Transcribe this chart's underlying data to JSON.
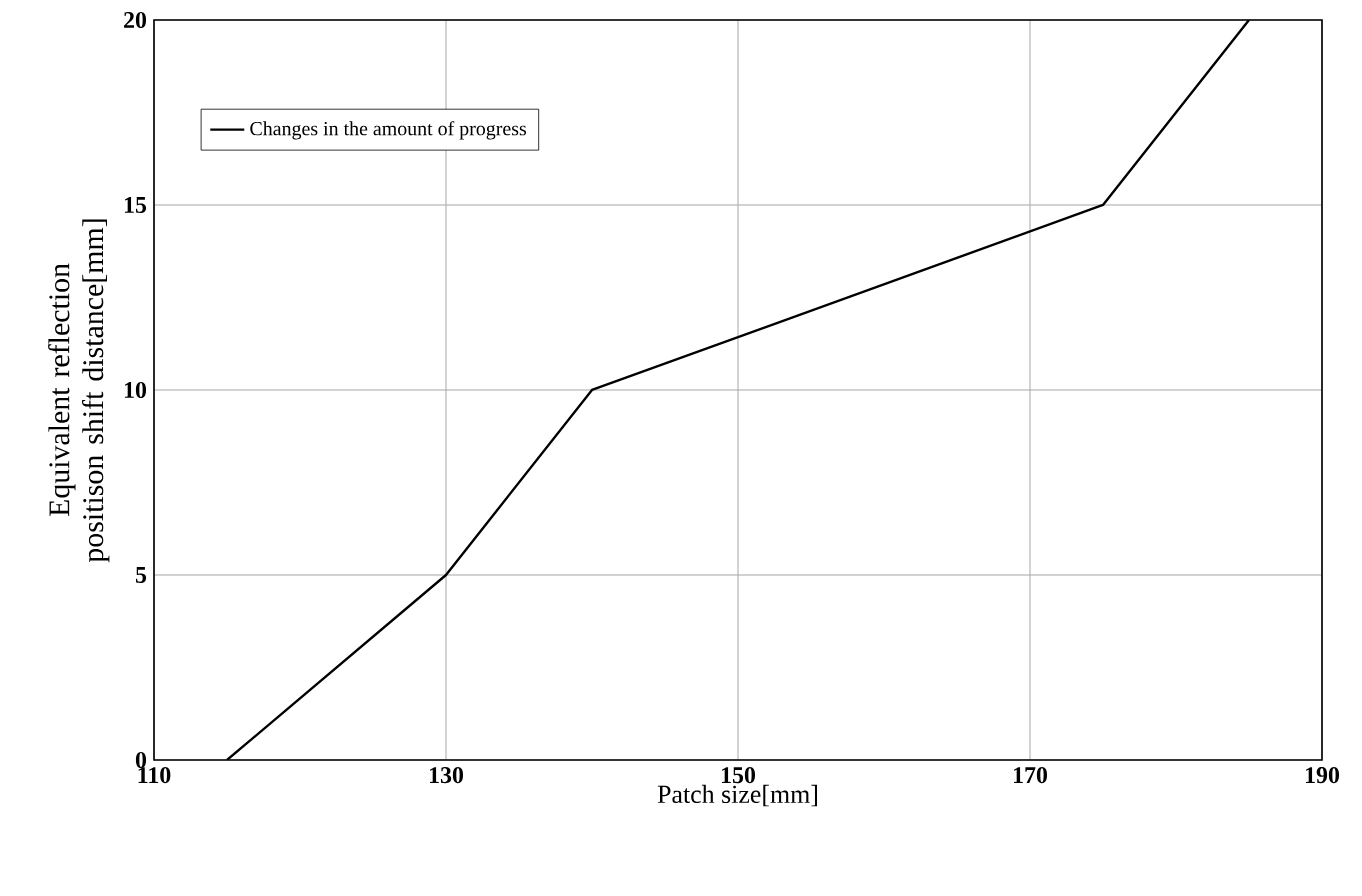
{
  "chart_data": {
    "type": "line",
    "xlabel": "Patch size[mm]",
    "ylabel": "Equivalent reflection positison shift distance[mm]",
    "x": [
      115,
      130,
      140,
      175,
      185
    ],
    "series": [
      {
        "name": "Changes in the amount of progress",
        "color": "#000000",
        "values": [
          0,
          5,
          10,
          15,
          20
        ]
      }
    ],
    "xlim": [
      110,
      190
    ],
    "ylim": [
      0,
      20
    ],
    "xticks": [
      110,
      130,
      150,
      170,
      190
    ],
    "yticks": [
      0,
      5,
      10,
      15,
      20
    ],
    "grid": true,
    "legend": "top left",
    "marker": "none",
    "line_style": "solid"
  }
}
